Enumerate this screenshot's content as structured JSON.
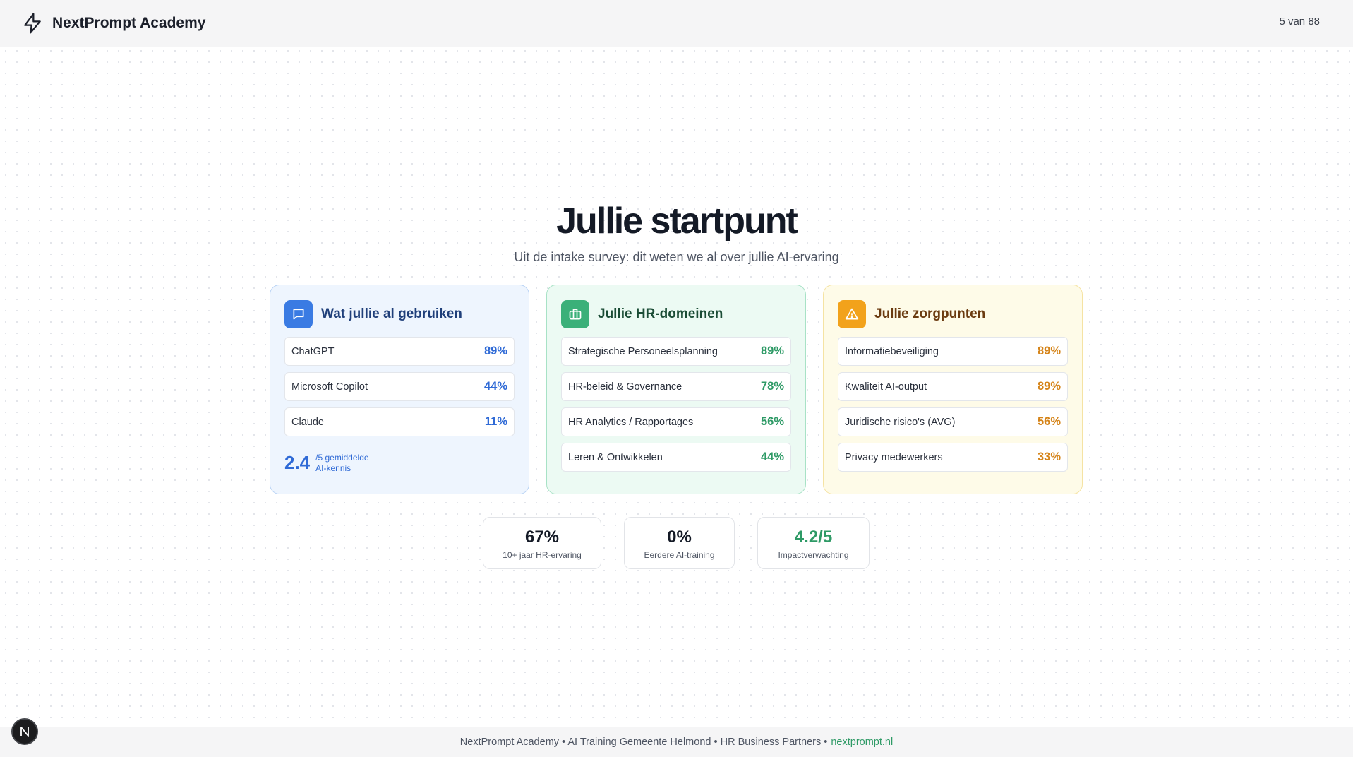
{
  "header": {
    "brand": "NextPrompt Academy",
    "logo_icon": "lightning-icon",
    "page_counter": "5 van 88"
  },
  "hero": {
    "title": "Jullie startpunt",
    "subtitle": "Uit de intake survey: dit weten we al over jullie AI-ervaring"
  },
  "cards": [
    {
      "title": "Wat jullie al gebruiken",
      "icon": "chat-bubble-icon",
      "accent": "#3a7be3",
      "items": [
        {
          "label": "ChatGPT",
          "value": "89%"
        },
        {
          "label": "Microsoft Copilot",
          "value": "44%"
        },
        {
          "label": "Claude",
          "value": "11%"
        }
      ],
      "average": {
        "value": "2.4",
        "label_line1": "/5 gemiddelde",
        "label_line2": "AI-kennis"
      }
    },
    {
      "title": "Jullie HR-domeinen",
      "icon": "briefcase-icon",
      "accent": "#3bb079",
      "items": [
        {
          "label": "Strategische Personeelsplanning",
          "value": "89%"
        },
        {
          "label": "HR-beleid & Governance",
          "value": "78%"
        },
        {
          "label": "HR Analytics / Rapportages",
          "value": "56%"
        },
        {
          "label": "Leren & Ontwikkelen",
          "value": "44%"
        }
      ]
    },
    {
      "title": "Jullie zorgpunten",
      "icon": "warning-triangle-icon",
      "accent": "#f2a21b",
      "items": [
        {
          "label": "Informatiebeveiliging",
          "value": "89%"
        },
        {
          "label": "Kwaliteit AI-output",
          "value": "89%"
        },
        {
          "label": "Juridische risico's (AVG)",
          "value": "56%"
        },
        {
          "label": "Privacy medewerkers",
          "value": "33%"
        }
      ]
    }
  ],
  "stats": [
    {
      "value": "67%",
      "label": "10+ jaar HR-ervaring"
    },
    {
      "value": "0%",
      "label": "Eerdere AI-training"
    },
    {
      "value": "4.2/5",
      "label": "Impactverwachting",
      "color": "#2e9a66"
    }
  ],
  "footer": {
    "text": "NextPrompt Academy • AI Training Gemeente Helmond • HR Business Partners •",
    "link": "nextprompt.nl"
  },
  "badge": {
    "letter": "N"
  }
}
